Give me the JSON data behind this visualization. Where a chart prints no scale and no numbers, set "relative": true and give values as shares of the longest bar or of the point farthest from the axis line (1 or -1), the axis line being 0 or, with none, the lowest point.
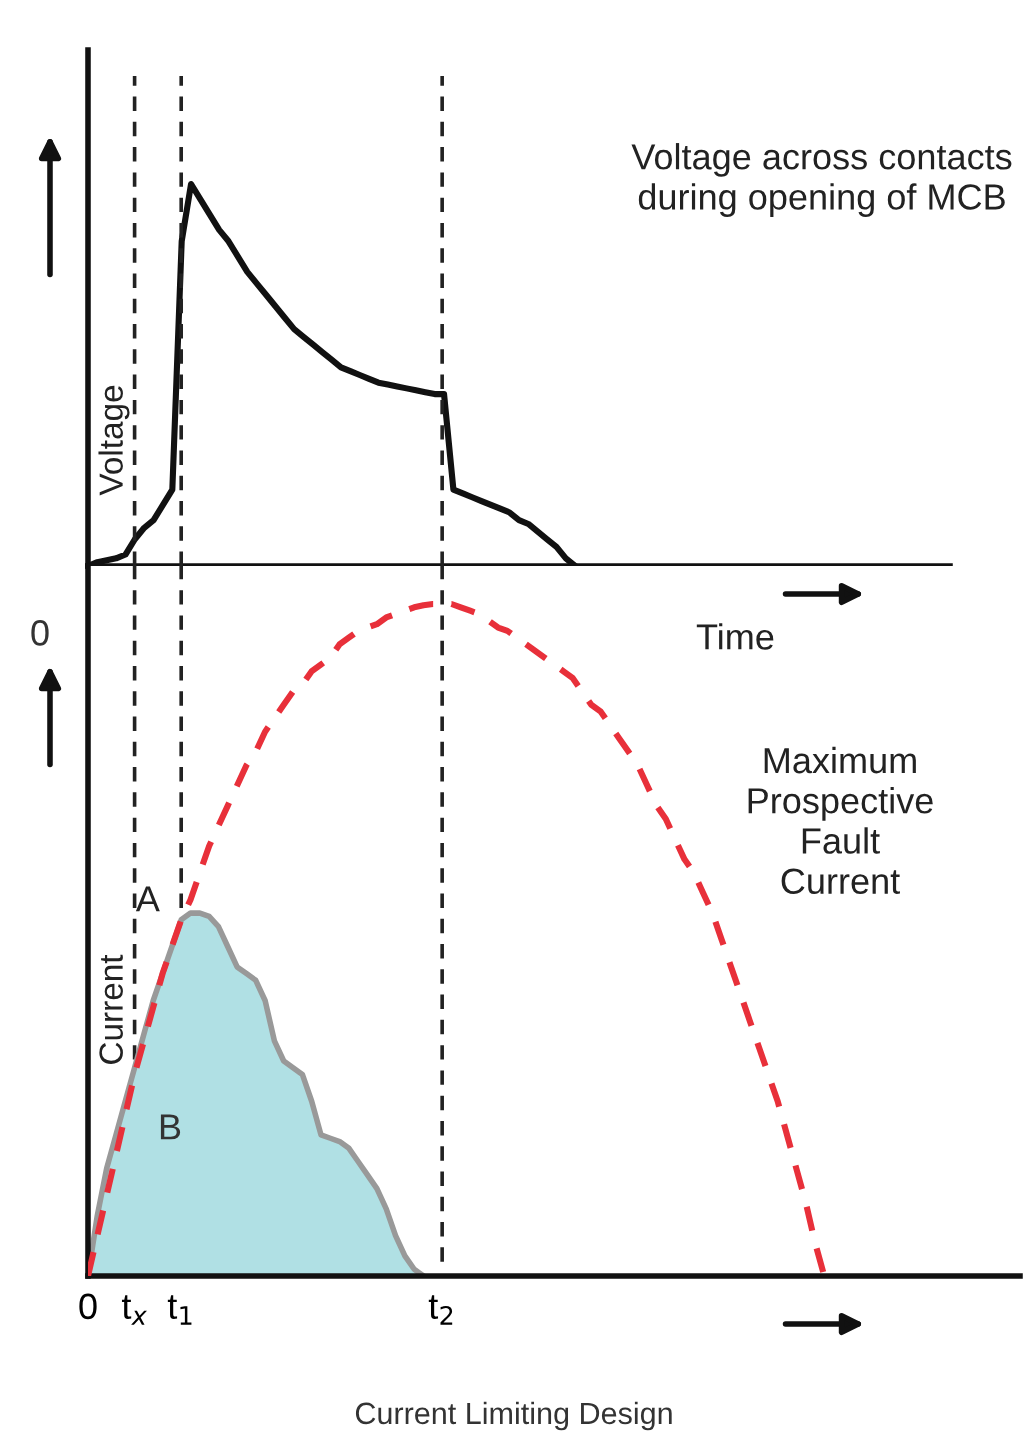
{
  "chart_data": [
    {
      "type": "line",
      "relative": true,
      "xlabel": "Time",
      "ylabel": "Voltage",
      "tick_labels": false,
      "grid": false,
      "legend": false,
      "line_style": "solid",
      "categories": [
        null,
        null,
        null,
        null,
        null,
        null,
        null,
        null,
        null,
        null,
        null,
        null,
        null,
        null,
        null,
        null,
        null,
        null,
        null,
        null,
        null,
        null,
        null,
        null,
        null,
        null,
        null,
        null,
        null,
        null,
        null,
        null,
        null,
        null,
        null,
        null,
        null,
        null,
        null,
        null,
        null,
        null,
        null,
        null,
        null,
        null,
        null,
        null,
        null,
        null,
        null,
        null,
        null,
        null,
        null,
        null,
        null,
        null,
        null,
        null,
        null,
        null,
        null,
        null,
        null,
        null,
        null,
        null,
        null,
        null,
        null,
        null,
        null,
        null,
        null,
        null,
        null,
        null,
        null,
        null,
        null,
        null,
        null,
        null,
        null,
        null,
        null,
        null,
        null,
        null,
        null,
        null,
        null
      ],
      "series": [
        {
          "name": "Voltage across contacts\nduring opening of MCB",
          "color": "#111111",
          "values": [
            0,
            0.01,
            0.015,
            0.02,
            0.03,
            0.07,
            0.1,
            0.12,
            0.16,
            0.2,
            0.85,
            1,
            0.96,
            0.92,
            0.88,
            0.85,
            0.81,
            0.77,
            0.74,
            0.71,
            0.68,
            0.65,
            0.62,
            0.6,
            0.58,
            0.56,
            0.54,
            0.52,
            0.51,
            0.5,
            0.49,
            0.48,
            0.475,
            0.47,
            0.465,
            0.46,
            0.455,
            0.45,
            0.45,
            0.2,
            0.19,
            0.18,
            0.17,
            0.16,
            0.15,
            0.14,
            0.12,
            0.11,
            0.09,
            0.07,
            0.05,
            0.02,
            0,
            null,
            null,
            null,
            null,
            null,
            null,
            null,
            null,
            null,
            null,
            null,
            null,
            null,
            null,
            null,
            null,
            null,
            null,
            null,
            null,
            null,
            null,
            null,
            null,
            null,
            null,
            null,
            null,
            null,
            null,
            null,
            null,
            null,
            null,
            null,
            null,
            null,
            null,
            null,
            null
          ]
        }
      ]
    },
    {
      "type": "line",
      "relative": true,
      "ylabel": "Current",
      "tick_labels": "x",
      "grid": false,
      "legend": false,
      "categories": [
        "0",
        null,
        null,
        null,
        null,
        "t$_{x}$",
        null,
        null,
        null,
        null,
        "t$_{1}$",
        null,
        null,
        null,
        null,
        null,
        null,
        null,
        null,
        null,
        null,
        null,
        null,
        null,
        null,
        null,
        null,
        null,
        null,
        null,
        null,
        null,
        null,
        null,
        null,
        null,
        null,
        null,
        "t$_{2}$",
        null,
        null,
        null,
        null,
        null,
        null,
        null,
        null,
        null,
        null,
        null,
        null,
        null,
        null,
        null,
        null,
        null,
        null,
        null,
        null,
        null,
        null,
        null,
        null,
        null,
        null,
        null,
        null,
        null,
        null,
        null,
        null,
        null,
        null,
        null,
        null,
        null,
        null,
        null,
        null,
        null,
        null,
        null,
        null,
        null,
        null,
        null,
        null,
        null,
        null,
        null,
        null,
        null,
        null,
        null,
        null,
        null,
        null,
        null,
        null,
        null,
        null
      ],
      "series": [
        {
          "type": "area",
          "color": "#b0e0e4",
          "values": [
            0,
            0.09,
            0.16,
            0.21,
            0.26,
            0.31,
            0.36,
            0.41,
            0.45,
            0.49,
            0.53,
            0.54,
            0.54,
            0.535,
            0.52,
            0.49,
            0.46,
            0.45,
            0.44,
            0.41,
            0.35,
            0.32,
            0.31,
            0.3,
            0.26,
            0.21,
            0.205,
            0.2,
            0.19,
            0.17,
            0.15,
            0.13,
            0.1,
            0.06,
            0.03,
            0.01,
            0,
            null,
            null,
            null,
            null,
            null,
            null,
            null,
            null,
            null,
            null,
            null,
            null,
            null,
            null,
            null,
            null,
            null,
            null,
            null,
            null,
            null,
            null,
            null,
            null,
            null,
            null,
            null,
            null,
            null,
            null,
            null,
            null,
            null,
            null,
            null,
            null,
            null,
            null,
            null,
            null,
            null,
            null,
            null,
            null,
            null,
            null,
            null,
            null,
            null,
            null,
            null,
            null,
            null,
            null,
            null,
            null,
            null,
            null,
            null,
            null,
            null,
            null,
            null,
            null
          ]
        },
        {
          "name": "Maximum\nProspective\nFault\nCurrent",
          "line_style": "dashed",
          "color": "#e8303a",
          "values": [
            0,
            0.06,
            0.12,
            0.18,
            0.24,
            0.3,
            0.35,
            0.4,
            0.45,
            0.49,
            0.53,
            0.56,
            0.6,
            0.64,
            0.67,
            0.7,
            0.73,
            0.76,
            0.78,
            0.81,
            0.83,
            0.85,
            0.87,
            0.88,
            0.9,
            0.91,
            0.92,
            0.94,
            0.95,
            0.96,
            0.965,
            0.97,
            0.98,
            0.985,
            0.99,
            0.995,
            0.998,
            1,
            1,
            1,
            0.995,
            0.99,
            0.985,
            0.975,
            0.965,
            0.96,
            0.95,
            0.94,
            0.93,
            0.92,
            0.91,
            0.9,
            0.89,
            0.87,
            0.85,
            0.84,
            0.82,
            0.8,
            0.78,
            0.76,
            0.73,
            0.7,
            0.68,
            0.65,
            0.62,
            0.6,
            0.57,
            0.54,
            0.5,
            0.46,
            0.42,
            0.38,
            0.34,
            0.3,
            0.26,
            0.21,
            0.16,
            0.11,
            0.05,
            0,
            null,
            null,
            null,
            null,
            null,
            null,
            null,
            null,
            null,
            null,
            null,
            null,
            null,
            null,
            null,
            null,
            null,
            null,
            null,
            null,
            null
          ]
        }
      ],
      "ref_lines": [
        {
          "axis": "x",
          "value": "t$_{x}$",
          "color": "#222222",
          "line_style": "dashed"
        },
        {
          "axis": "x",
          "value": "t$_{1}$",
          "color": "#222222",
          "line_style": "dashed"
        },
        {
          "axis": "x",
          "value": "t$_{2}$",
          "color": "#222222",
          "line_style": "dashed"
        }
      ],
      "annotations": [
        {
          "text": "A",
          "x": "t$_{1}$",
          "y": 0.54
        },
        "B",
        "0",
        "Current Limiting Design"
      ]
    }
  ]
}
